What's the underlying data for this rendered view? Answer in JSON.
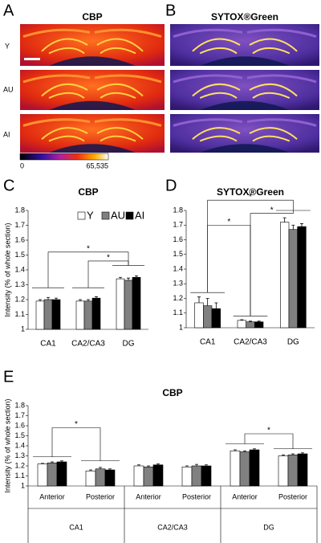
{
  "figure": {
    "panel_a": {
      "label": "A",
      "title": "CBP"
    },
    "panel_b": {
      "label": "B",
      "title": "SYTOX®Green"
    },
    "rows": [
      "Y",
      "AU",
      "AI"
    ],
    "colorbar": {
      "min": "0",
      "max": "65,535"
    }
  },
  "chart_data": [
    {
      "type": "bar",
      "label": "C",
      "title": "CBP",
      "ylabel": "Intensity (% of whole section)",
      "categories": [
        "CA1",
        "CA2/CA3",
        "DG"
      ],
      "series": [
        {
          "name": "Y",
          "color": "#ffffff",
          "values": [
            1.19,
            1.19,
            1.34
          ],
          "errors": [
            0.01,
            0.01,
            0.01
          ]
        },
        {
          "name": "AU",
          "color": "#808080",
          "values": [
            1.2,
            1.19,
            1.33
          ],
          "errors": [
            0.015,
            0.01,
            0.015
          ]
        },
        {
          "name": "AI",
          "color": "#000000",
          "values": [
            1.2,
            1.21,
            1.35
          ],
          "errors": [
            0.01,
            0.01,
            0.01
          ]
        }
      ],
      "ylim": [
        1,
        1.8
      ],
      "yticks": [
        1,
        1.1,
        1.2,
        1.3,
        1.4,
        1.5,
        1.6,
        1.7,
        1.8
      ],
      "legend": "top",
      "annotations": [
        "*",
        "*"
      ]
    },
    {
      "type": "bar",
      "label": "D",
      "title": "SYTOX®Green",
      "categories": [
        "CA1",
        "CA2/CA3",
        "DG"
      ],
      "series": [
        {
          "color": "#ffffff",
          "values": [
            1.17,
            1.05,
            1.72
          ],
          "errors": [
            0.04,
            0.005,
            0.03
          ]
        },
        {
          "color": "#808080",
          "values": [
            1.15,
            1.04,
            1.67
          ],
          "errors": [
            0.05,
            0.005,
            0.03
          ]
        },
        {
          "color": "#000000",
          "values": [
            1.13,
            1.04,
            1.69
          ],
          "errors": [
            0.04,
            0.005,
            0.02
          ]
        }
      ],
      "ylim": [
        1,
        1.8
      ],
      "yticks": [
        1,
        1.1,
        1.2,
        1.3,
        1.4,
        1.5,
        1.6,
        1.7,
        1.8
      ],
      "annotations": [
        "*",
        "*",
        "*"
      ]
    },
    {
      "type": "bar",
      "label": "E",
      "title": "CBP",
      "ylabel": "Intensity (% of whole section)",
      "categories": [
        "Anterior",
        "Posterior",
        "Anterior",
        "Posterior",
        "Anterior",
        "Posterior"
      ],
      "groups": [
        "CA1",
        "CA2/CA3",
        "DG"
      ],
      "series": [
        {
          "color": "#ffffff",
          "values": [
            1.22,
            1.15,
            1.2,
            1.19,
            1.35,
            1.3
          ],
          "errors": [
            0.005,
            0.01,
            0.01,
            0.01,
            0.01,
            0.01
          ]
        },
        {
          "color": "#808080",
          "values": [
            1.23,
            1.17,
            1.19,
            1.2,
            1.34,
            1.31
          ],
          "errors": [
            0.01,
            0.015,
            0.01,
            0.015,
            0.01,
            0.01
          ]
        },
        {
          "color": "#000000",
          "values": [
            1.24,
            1.16,
            1.21,
            1.2,
            1.36,
            1.32
          ],
          "errors": [
            0.01,
            0.01,
            0.01,
            0.01,
            0.01,
            0.01
          ]
        }
      ],
      "ylim": [
        1,
        1.8
      ],
      "yticks": [
        1,
        1.1,
        1.2,
        1.3,
        1.4,
        1.5,
        1.6,
        1.7,
        1.8
      ],
      "annotations": [
        "*",
        "*"
      ]
    }
  ]
}
